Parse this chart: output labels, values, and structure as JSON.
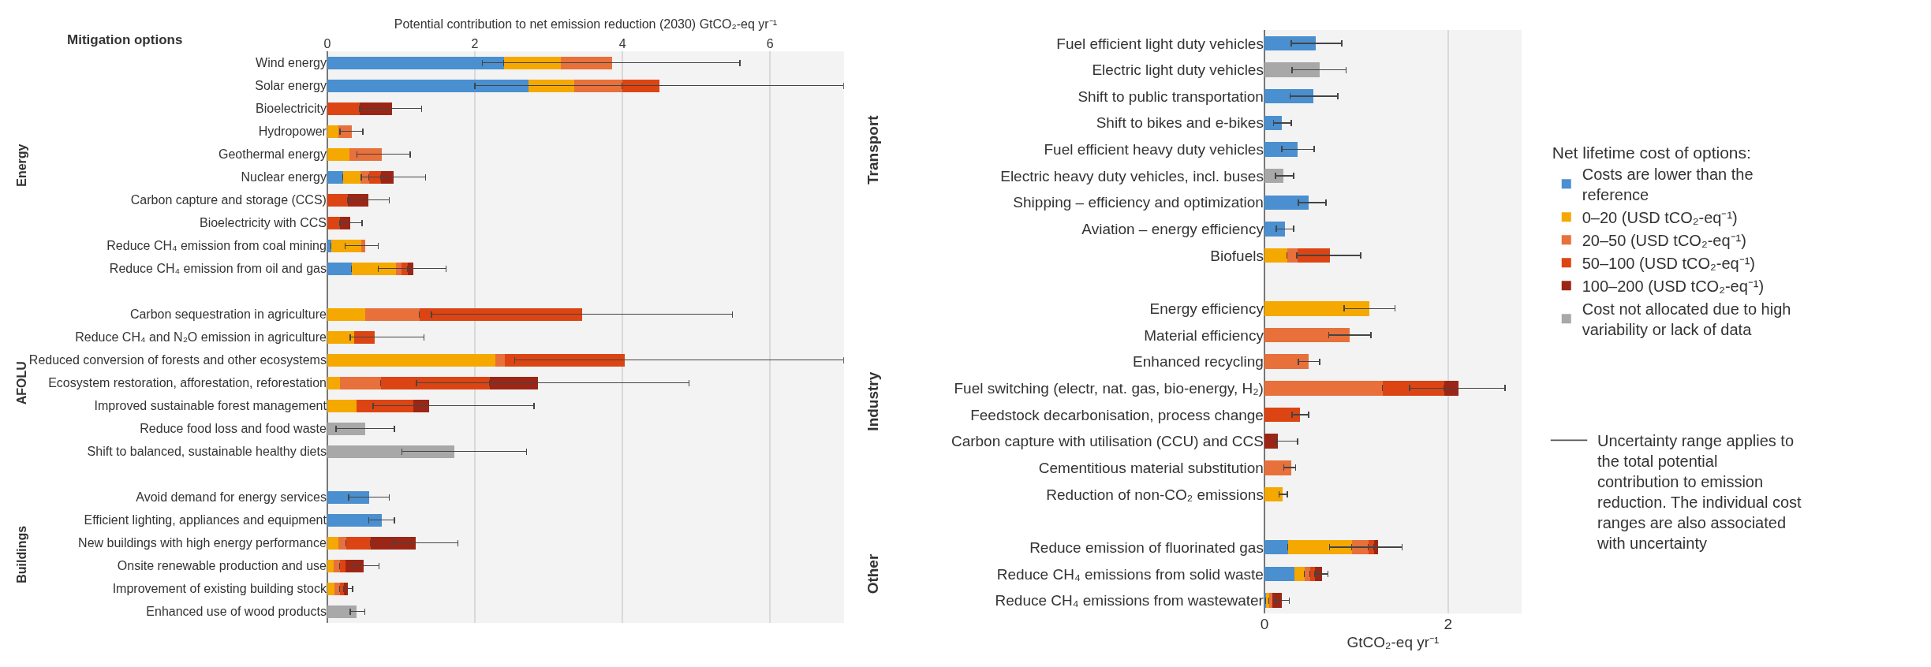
{
  "chart_data": [
    {
      "type": "bar",
      "orientation": "horizontal",
      "stacked": true,
      "grid": "x",
      "legend": false,
      "xlabel": "Potential contribution to net emission reduction (2030) GtCO₂-eq yr⁻¹",
      "xlim": [
        0,
        7
      ],
      "xticks": [
        0,
        2,
        4,
        6
      ],
      "categories": [
        "Wind energy",
        "Solar energy",
        "Bioelectricity",
        "Hydropower",
        "Geothermal energy",
        "Nuclear energy",
        "Carbon capture and storage (CCS)",
        "Bioelectricity with CCS",
        "Reduce CH₄ emission from coal mining",
        "Reduce CH₄ emission from oil and gas",
        null,
        "Carbon sequestration in agriculture",
        "Reduce CH₄ and N₂O emission in agriculture",
        "Reduced conversion of forests and other ecosystems",
        "Ecosystem restoration, afforestation, reforestation",
        "Improved sustainable forest management",
        "Reduce food loss and food waste",
        "Shift to balanced, sustainable healthy diets",
        null,
        "Avoid demand for energy services",
        "Efficient lighting, appliances and equipment",
        "New buildings with high energy performance",
        "Onsite renewable production and use",
        "Improvement of existing building stock",
        "Enhanced use of wood products"
      ],
      "series": [
        {
          "color": "#4a8fd0",
          "values": [
            2.39,
            2.73,
            null,
            null,
            null,
            0.21,
            null,
            null,
            0.05,
            0.33,
            null,
            null,
            null,
            null,
            null,
            null,
            null,
            null,
            null,
            0.57,
            0.74,
            null,
            null,
            null,
            null
          ],
          "errors": [
            null,
            null,
            null,
            null,
            null,
            null,
            null,
            null,
            null,
            null,
            null,
            null,
            null,
            null,
            null,
            null,
            null,
            null,
            null,
            [
              0.29,
              0.84
            ],
            [
              0.56,
              0.91
            ],
            null,
            null,
            null,
            null
          ]
        },
        {
          "color": "#f5a800",
          "values": [
            0.77,
            0.62,
            null,
            0.15,
            0.3,
            0.24,
            null,
            null,
            0.41,
            0.6,
            null,
            0.51,
            0.36,
            2.28,
            0.17,
            0.4,
            null,
            null,
            null,
            null,
            null,
            0.15,
            0.09,
            0.1,
            null
          ]
        },
        {
          "color": "#e8703a",
          "values": [
            0.7,
            0.65,
            null,
            0.18,
            0.44,
            0.12,
            null,
            null,
            0.05,
            0.08,
            null,
            0.74,
            null,
            0.13,
            0.56,
            null,
            null,
            null,
            null,
            null,
            null,
            0.11,
            0.08,
            0.07,
            null
          ],
          "errors": [
            [
              2.1,
              5.59
            ],
            null,
            null,
            [
              0.17,
              0.48
            ],
            [
              0.4,
              1.12
            ],
            null,
            null,
            null,
            [
              0.24,
              0.69
            ],
            null,
            null,
            null,
            null,
            null,
            null,
            null,
            null,
            null,
            null,
            null,
            null,
            null,
            null,
            null,
            null
          ]
        },
        {
          "color": "#dc4513",
          "values": [
            null,
            0.5,
            0.44,
            null,
            null,
            0.16,
            0.28,
            0.17,
            null,
            0.08,
            null,
            2.2,
            0.28,
            1.62,
            1.47,
            0.77,
            null,
            null,
            null,
            null,
            null,
            0.33,
            0.08,
            0.05,
            null
          ],
          "errors": [
            null,
            [
              2.0,
              7.0
            ],
            null,
            null,
            null,
            null,
            null,
            null,
            null,
            null,
            null,
            [
              1.41,
              5.49
            ],
            [
              0.31,
              1.31
            ],
            [
              2.54,
              7.0
            ],
            null,
            null,
            null,
            null,
            null,
            null,
            null,
            null,
            null,
            null,
            null
          ]
        },
        {
          "color": "#9c2616",
          "values": [
            null,
            null,
            0.44,
            null,
            null,
            0.17,
            0.28,
            0.14,
            null,
            0.08,
            null,
            null,
            null,
            null,
            0.65,
            0.21,
            null,
            null,
            null,
            null,
            null,
            0.61,
            0.24,
            0.06,
            null
          ],
          "errors": [
            null,
            null,
            [
              0.44,
              1.28
            ],
            null,
            null,
            [
              0.46,
              1.33
            ],
            [
              0.28,
              0.84
            ],
            [
              0.17,
              0.47
            ],
            null,
            [
              0.69,
              1.61
            ],
            null,
            null,
            null,
            null,
            [
              1.21,
              4.9
            ],
            [
              0.62,
              2.8
            ],
            null,
            null,
            null,
            null,
            null,
            [
              0.9,
              1.77
            ],
            [
              0.36,
              0.7
            ],
            [
              0.22,
              0.34
            ],
            null
          ]
        },
        {
          "color": "#a8a8a8",
          "values": [
            null,
            null,
            null,
            null,
            null,
            null,
            null,
            null,
            null,
            null,
            null,
            null,
            null,
            null,
            null,
            null,
            0.51,
            1.72,
            null,
            null,
            null,
            null,
            null,
            null,
            0.4
          ],
          "errors": [
            null,
            null,
            null,
            null,
            null,
            null,
            null,
            null,
            null,
            null,
            null,
            null,
            null,
            null,
            null,
            null,
            [
              0.12,
              0.91
            ],
            [
              1.01,
              2.7
            ],
            null,
            null,
            null,
            null,
            null,
            null,
            [
              0.31,
              0.51
            ]
          ]
        }
      ],
      "annotations": [
        "Energy",
        "AFOLU",
        "Buildings",
        "Mitigation options"
      ]
    },
    {
      "type": "bar",
      "orientation": "horizontal",
      "stacked": true,
      "grid": "x",
      "legend": "right",
      "xlabel": "GtCO₂-eq yr⁻¹",
      "legend_title": "Net lifetime cost of options:",
      "xlim": [
        0,
        2.8
      ],
      "xticks": [
        0,
        2
      ],
      "categories": [
        "Fuel efficient light duty vehicles",
        "Electric light duty vehicles",
        "Shift to public transportation",
        "Shift to bikes and e-bikes",
        "Fuel efficient heavy duty vehicles",
        "Electric heavy duty vehicles, incl. buses",
        "Shipping – efficiency and optimization",
        "Aviation – energy efficiency",
        "Biofuels",
        null,
        "Energy efficiency",
        "Material efficiency",
        "Enhanced recycling",
        "Fuel switching (electr, nat. gas, bio-energy, H₂)",
        "Feedstock decarbonisation, process change",
        "Carbon capture with utilisation (CCU) and CCS",
        "Cementitious material substitution",
        "Reduction of non-CO₂ emissions",
        null,
        "Reduce emission of fluorinated gas",
        "Reduce CH₄ emissions from solid waste",
        "Reduce CH₄ emissions from wastewater"
      ],
      "series": [
        {
          "name": "Costs are lower than the reference",
          "color": "#4a8fd0",
          "values": [
            0.56,
            null,
            0.53,
            0.19,
            0.36,
            null,
            0.48,
            0.22,
            null,
            null,
            null,
            null,
            null,
            null,
            null,
            null,
            null,
            null,
            null,
            0.26,
            0.33,
            0.02
          ],
          "errors": [
            [
              0.29,
              0.84
            ],
            null,
            [
              0.28,
              0.8
            ],
            [
              0.1,
              0.29
            ],
            [
              0.19,
              0.54
            ],
            null,
            [
              0.37,
              0.67
            ],
            [
              0.13,
              0.32
            ],
            null,
            null,
            null,
            null,
            null,
            null,
            null,
            null,
            null,
            null,
            null,
            null,
            null,
            null
          ]
        },
        {
          "name": "0–20 (USD tCO₂-eq⁻¹)",
          "color": "#f5a800",
          "values": [
            null,
            null,
            null,
            null,
            null,
            null,
            null,
            null,
            0.25,
            null,
            1.14,
            null,
            null,
            null,
            null,
            null,
            null,
            0.2,
            null,
            0.69,
            0.11,
            0.03
          ],
          "errors": [
            null,
            null,
            null,
            null,
            null,
            null,
            null,
            null,
            null,
            null,
            [
              0.87,
              1.42
            ],
            null,
            null,
            null,
            null,
            null,
            null,
            [
              0.16,
              0.25
            ],
            null,
            null,
            null,
            null
          ]
        },
        {
          "name": "20–50 (USD tCO₂-eq⁻¹)",
          "color": "#e8703a",
          "values": [
            null,
            null,
            null,
            null,
            null,
            null,
            null,
            null,
            0.11,
            null,
            null,
            0.93,
            0.48,
            1.29,
            null,
            null,
            0.29,
            null,
            null,
            0.18,
            0.06,
            0.04
          ],
          "errors": [
            null,
            null,
            null,
            null,
            null,
            null,
            null,
            null,
            null,
            null,
            null,
            [
              0.7,
              1.16
            ],
            [
              0.37,
              0.6
            ],
            null,
            null,
            null,
            [
              0.21,
              0.34
            ],
            null,
            null,
            null,
            null,
            null
          ]
        },
        {
          "name": "50–100 (USD tCO₂-eq⁻¹)",
          "color": "#dc4513",
          "values": [
            null,
            null,
            null,
            null,
            null,
            null,
            null,
            null,
            0.35,
            null,
            null,
            null,
            null,
            0.67,
            0.39,
            null,
            null,
            null,
            null,
            0.06,
            0.05,
            null
          ],
          "errors": [
            null,
            null,
            null,
            null,
            null,
            null,
            null,
            null,
            [
              0.35,
              1.05
            ],
            null,
            null,
            null,
            null,
            null,
            [
              0.3,
              0.48
            ],
            null,
            null,
            null,
            null,
            null,
            null,
            null
          ]
        },
        {
          "name": "100–200 (USD tCO₂-eq⁻¹)",
          "color": "#9c2616",
          "values": [
            null,
            null,
            null,
            null,
            null,
            null,
            null,
            null,
            null,
            null,
            null,
            null,
            null,
            0.15,
            null,
            0.15,
            null,
            null,
            null,
            0.05,
            0.08,
            0.1
          ],
          "errors": [
            null,
            null,
            null,
            null,
            null,
            null,
            null,
            null,
            null,
            null,
            null,
            null,
            null,
            [
              1.58,
              2.62
            ],
            null,
            [
              0.13,
              0.36
            ],
            null,
            null,
            null,
            [
              0.71,
              1.5
            ],
            [
              0.55,
              0.69
            ],
            [
              0.12,
              0.27
            ]
          ]
        },
        {
          "name": "Cost not allocated due to high variability or lack of data",
          "color": "#a8a8a8",
          "values": [
            null,
            0.6,
            null,
            null,
            null,
            0.21,
            null,
            null,
            null,
            null,
            null,
            null,
            null,
            null,
            null,
            null,
            null,
            null,
            null,
            null,
            null,
            null
          ],
          "errors": [
            null,
            [
              0.3,
              0.89
            ],
            null,
            null,
            null,
            [
              0.12,
              0.32
            ],
            null,
            null,
            null,
            null,
            null,
            null,
            null,
            null,
            null,
            null,
            null,
            null,
            null,
            null,
            null,
            null
          ]
        }
      ],
      "annotations": [
        "Transport",
        "Industry",
        "Other",
        "Uncertainty range applies to the total potential contribution to emission reduction. The individual cost ranges are also associated with uncertainty"
      ]
    }
  ]
}
